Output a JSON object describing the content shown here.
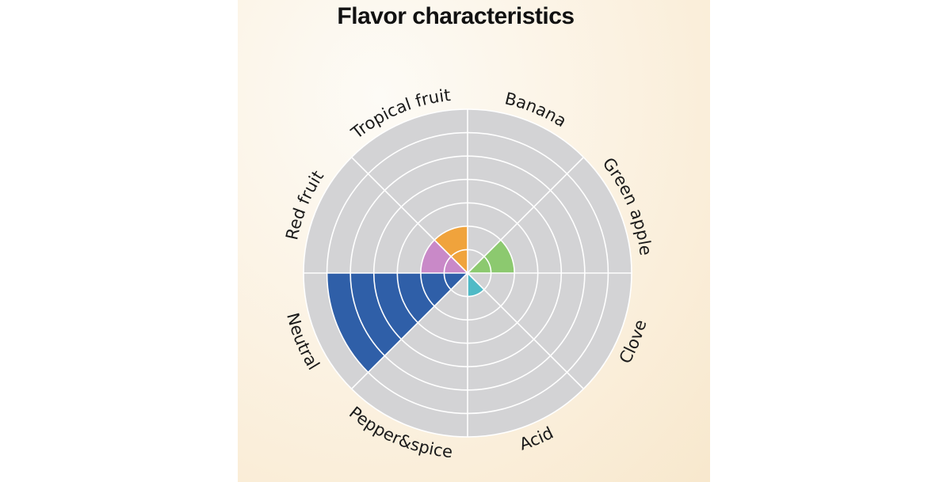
{
  "chart_data": {
    "type": "polar-area",
    "title": "Flavor characteristics",
    "categories": [
      "Banana",
      "Green apple",
      "Clove",
      "Acid",
      "Pepper&spice",
      "Neutral",
      "Red fruit",
      "Tropical fruit"
    ],
    "values": [
      0,
      2,
      0,
      1,
      0,
      6,
      2,
      2
    ],
    "rmax": 7,
    "rings": 7,
    "colors": [
      "#8e8e8e",
      "#8cc96f",
      "#8e8e8e",
      "#4fbac6",
      "#8e8e8e",
      "#2f5fa8",
      "#c989c8",
      "#f0a33c"
    ],
    "grid": true
  }
}
